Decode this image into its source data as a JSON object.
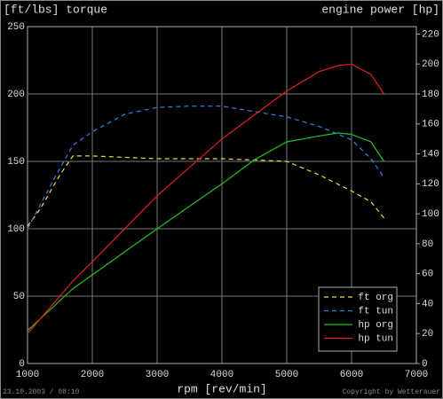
{
  "chart_data": {
    "type": "line",
    "title_left": "[ft/lbs]  torque",
    "title_right": "engine power [hp]",
    "x_label": "rpm [rev/min]",
    "footer_left": "23.10.2003 / 08:10",
    "footer_right": "Copyright by Wetterauer",
    "xlim": [
      1000,
      7000
    ],
    "xticks": [
      1000,
      2000,
      3000,
      4000,
      5000,
      6000,
      7000
    ],
    "ylim": [
      0,
      250
    ],
    "yticks": [
      0,
      50,
      100,
      150,
      200,
      250
    ],
    "y2lim": [
      0,
      225
    ],
    "y2ticks": [
      0,
      20,
      40,
      60,
      80,
      100,
      120,
      140,
      160,
      180,
      200,
      220
    ],
    "grid": true,
    "legend": "bottom-right",
    "series": [
      {
        "name": "ft org",
        "color": "#e8e040",
        "dashed": true,
        "axis": "y",
        "x": [
          1000,
          1200,
          1500,
          1700,
          2000,
          3000,
          4000,
          4500,
          5000,
          5500,
          6000,
          6300,
          6500
        ],
        "values": [
          102,
          115,
          140,
          154,
          154,
          152,
          152,
          151,
          150,
          140,
          128,
          120,
          108
        ]
      },
      {
        "name": "ft tun",
        "color": "#3a7de8",
        "dashed": true,
        "axis": "y",
        "x": [
          1000,
          1200,
          1500,
          1700,
          2000,
          2500,
          3000,
          3500,
          4000,
          4500,
          5000,
          5500,
          6000,
          6300,
          6500
        ],
        "values": [
          100,
          118,
          145,
          162,
          172,
          185,
          190,
          191,
          191,
          187,
          183,
          176,
          166,
          152,
          138
        ]
      },
      {
        "name": "hp org",
        "color": "#20c020",
        "dashed": false,
        "axis": "y2",
        "x": [
          1000,
          1700,
          3000,
          4000,
          4500,
          5000,
          5500,
          5800,
          6000,
          6300,
          6500
        ],
        "values": [
          22,
          50,
          90,
          120,
          136,
          148,
          152,
          154,
          153,
          148,
          135
        ]
      },
      {
        "name": "hp tun",
        "color": "#e02020",
        "dashed": false,
        "axis": "y2",
        "x": [
          1000,
          1700,
          2000,
          3000,
          4000,
          5000,
          5500,
          5800,
          6000,
          6300,
          6500
        ],
        "values": [
          20,
          55,
          68,
          112,
          150,
          182,
          195,
          199,
          200,
          193,
          180
        ]
      }
    ]
  }
}
